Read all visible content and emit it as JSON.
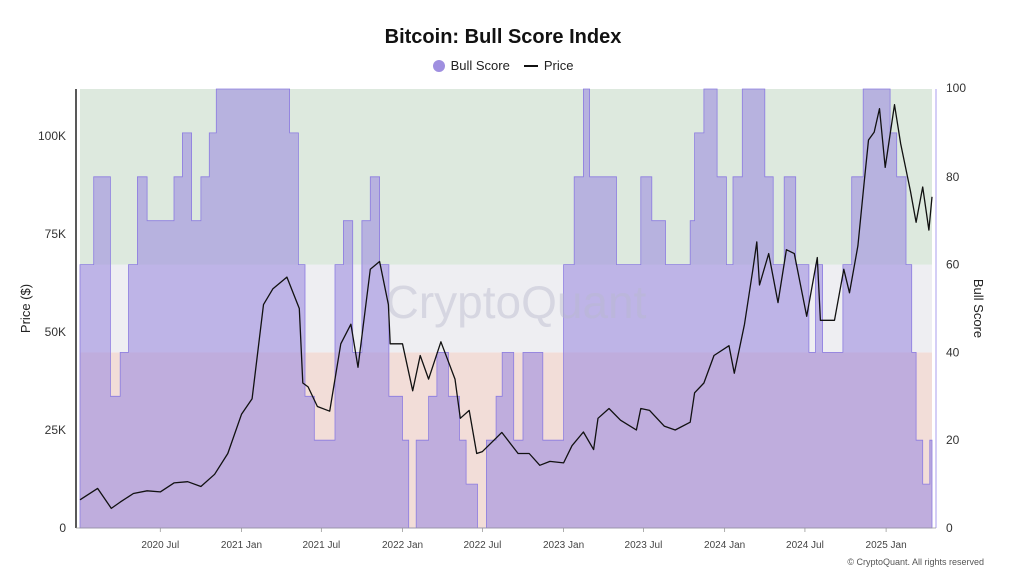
{
  "copyright": "© CryptoQuant. All rights reserved",
  "chart_data": {
    "type": "area",
    "title": "Bitcoin: Bull Score Index",
    "watermark": "CryptoQuant",
    "y_left_label": "Price ($)",
    "y_right_label": "Bull Score",
    "y_left_ticks": [
      "0",
      "25K",
      "50K",
      "75K",
      "100K"
    ],
    "y_left_tick_values": [
      0,
      25000,
      50000,
      75000,
      100000
    ],
    "y_left_lim": [
      0,
      112000
    ],
    "y_right_ticks": [
      "0",
      "20",
      "40",
      "60",
      "80",
      "100"
    ],
    "y_right_tick_values": [
      0,
      20,
      40,
      60,
      80,
      100
    ],
    "y_right_lim": [
      0,
      100
    ],
    "x_ticks": [
      "2020 Jul",
      "2021 Jan",
      "2021 Jul",
      "2022 Jan",
      "2022 Jul",
      "2023 Jan",
      "2023 Jul",
      "2024 Jan",
      "2024 Jul",
      "2025 Jan"
    ],
    "x_tick_dates": [
      "2020-07-01",
      "2021-01-01",
      "2021-07-01",
      "2022-01-01",
      "2022-07-01",
      "2023-01-01",
      "2023-07-01",
      "2024-01-01",
      "2024-07-01",
      "2025-01-01"
    ],
    "x_range": [
      "2020-01-01",
      "2025-04-15"
    ],
    "legend_position": "top-center",
    "grid": false,
    "zones": [
      {
        "from": 0,
        "to": 40,
        "color": "#f2ddd8"
      },
      {
        "from": 40,
        "to": 60,
        "color": "#eeeef2"
      },
      {
        "from": 60,
        "to": 100,
        "color": "#dde9de"
      }
    ],
    "series": [
      {
        "name": "Bull Score",
        "type": "area",
        "axis": "right",
        "color": "#9f8fe0",
        "points": [
          [
            "2020-01-01",
            60
          ],
          [
            "2020-02-01",
            80
          ],
          [
            "2020-02-20",
            80
          ],
          [
            "2020-03-10",
            30
          ],
          [
            "2020-04-01",
            40
          ],
          [
            "2020-04-20",
            60
          ],
          [
            "2020-05-10",
            80
          ],
          [
            "2020-06-01",
            70
          ],
          [
            "2020-07-01",
            70
          ],
          [
            "2020-08-01",
            80
          ],
          [
            "2020-08-20",
            90
          ],
          [
            "2020-09-10",
            70
          ],
          [
            "2020-10-01",
            80
          ],
          [
            "2020-10-20",
            90
          ],
          [
            "2020-11-05",
            100
          ],
          [
            "2020-12-01",
            100
          ],
          [
            "2021-01-01",
            100
          ],
          [
            "2021-02-01",
            100
          ],
          [
            "2021-03-01",
            100
          ],
          [
            "2021-04-01",
            100
          ],
          [
            "2021-04-20",
            90
          ],
          [
            "2021-05-10",
            60
          ],
          [
            "2021-05-25",
            30
          ],
          [
            "2021-06-15",
            20
          ],
          [
            "2021-07-10",
            20
          ],
          [
            "2021-08-01",
            60
          ],
          [
            "2021-08-20",
            70
          ],
          [
            "2021-09-10",
            40
          ],
          [
            "2021-10-01",
            70
          ],
          [
            "2021-10-20",
            80
          ],
          [
            "2021-11-10",
            60
          ],
          [
            "2021-12-01",
            30
          ],
          [
            "2022-01-01",
            20
          ],
          [
            "2022-01-15",
            0
          ],
          [
            "2022-02-01",
            20
          ],
          [
            "2022-03-01",
            30
          ],
          [
            "2022-03-20",
            40
          ],
          [
            "2022-04-15",
            30
          ],
          [
            "2022-05-10",
            20
          ],
          [
            "2022-05-25",
            10
          ],
          [
            "2022-06-20",
            0
          ],
          [
            "2022-07-10",
            20
          ],
          [
            "2022-08-01",
            30
          ],
          [
            "2022-08-15",
            40
          ],
          [
            "2022-09-10",
            20
          ],
          [
            "2022-10-01",
            40
          ],
          [
            "2022-11-15",
            20
          ],
          [
            "2022-12-10",
            20
          ],
          [
            "2023-01-01",
            60
          ],
          [
            "2023-01-25",
            80
          ],
          [
            "2023-02-15",
            100
          ],
          [
            "2023-03-01",
            80
          ],
          [
            "2023-04-01",
            80
          ],
          [
            "2023-05-01",
            60
          ],
          [
            "2023-06-01",
            60
          ],
          [
            "2023-06-25",
            80
          ],
          [
            "2023-07-20",
            70
          ],
          [
            "2023-08-20",
            60
          ],
          [
            "2023-09-15",
            60
          ],
          [
            "2023-10-15",
            70
          ],
          [
            "2023-10-25",
            90
          ],
          [
            "2023-11-15",
            100
          ],
          [
            "2023-12-15",
            80
          ],
          [
            "2024-01-05",
            60
          ],
          [
            "2024-01-20",
            80
          ],
          [
            "2024-02-10",
            100
          ],
          [
            "2024-03-10",
            100
          ],
          [
            "2024-04-01",
            80
          ],
          [
            "2024-04-20",
            60
          ],
          [
            "2024-05-15",
            80
          ],
          [
            "2024-06-10",
            60
          ],
          [
            "2024-07-10",
            40
          ],
          [
            "2024-07-25",
            60
          ],
          [
            "2024-08-10",
            40
          ],
          [
            "2024-09-01",
            40
          ],
          [
            "2024-09-25",
            60
          ],
          [
            "2024-10-15",
            80
          ],
          [
            "2024-11-10",
            100
          ],
          [
            "2024-12-10",
            100
          ],
          [
            "2025-01-10",
            90
          ],
          [
            "2025-01-25",
            80
          ],
          [
            "2025-02-15",
            60
          ],
          [
            "2025-02-28",
            40
          ],
          [
            "2025-03-10",
            20
          ],
          [
            "2025-03-25",
            10
          ],
          [
            "2025-04-10",
            20
          ],
          [
            "2025-04-15",
            20
          ]
        ]
      },
      {
        "name": "Price",
        "type": "line",
        "axis": "left",
        "color": "#111111",
        "points": [
          [
            "2020-01-01",
            7200
          ],
          [
            "2020-02-10",
            10100
          ],
          [
            "2020-03-12",
            5000
          ],
          [
            "2020-04-01",
            6600
          ],
          [
            "2020-05-01",
            8800
          ],
          [
            "2020-06-01",
            9500
          ],
          [
            "2020-07-01",
            9200
          ],
          [
            "2020-08-01",
            11500
          ],
          [
            "2020-09-01",
            11800
          ],
          [
            "2020-10-01",
            10600
          ],
          [
            "2020-11-01",
            13700
          ],
          [
            "2020-12-01",
            19000
          ],
          [
            "2021-01-01",
            29000
          ],
          [
            "2021-01-25",
            33000
          ],
          [
            "2021-02-20",
            57000
          ],
          [
            "2021-03-13",
            61000
          ],
          [
            "2021-04-14",
            64000
          ],
          [
            "2021-05-12",
            56000
          ],
          [
            "2021-05-20",
            37000
          ],
          [
            "2021-06-01",
            36000
          ],
          [
            "2021-06-22",
            31000
          ],
          [
            "2021-07-20",
            29800
          ],
          [
            "2021-08-14",
            47000
          ],
          [
            "2021-09-06",
            52000
          ],
          [
            "2021-09-22",
            41000
          ],
          [
            "2021-10-20",
            66000
          ],
          [
            "2021-11-10",
            68000
          ],
          [
            "2021-11-30",
            57000
          ],
          [
            "2021-12-04",
            47000
          ],
          [
            "2022-01-01",
            47000
          ],
          [
            "2022-01-24",
            35000
          ],
          [
            "2022-02-10",
            44000
          ],
          [
            "2022-03-01",
            38000
          ],
          [
            "2022-03-29",
            47500
          ],
          [
            "2022-04-30",
            38000
          ],
          [
            "2022-05-12",
            28000
          ],
          [
            "2022-06-01",
            30000
          ],
          [
            "2022-06-18",
            19000
          ],
          [
            "2022-07-01",
            19500
          ],
          [
            "2022-08-14",
            24400
          ],
          [
            "2022-09-20",
            19000
          ],
          [
            "2022-10-15",
            19000
          ],
          [
            "2022-11-08",
            16000
          ],
          [
            "2022-12-01",
            17000
          ],
          [
            "2023-01-01",
            16600
          ],
          [
            "2023-01-20",
            21000
          ],
          [
            "2023-02-15",
            24500
          ],
          [
            "2023-03-10",
            20000
          ],
          [
            "2023-03-20",
            28000
          ],
          [
            "2023-04-14",
            30500
          ],
          [
            "2023-05-10",
            27500
          ],
          [
            "2023-06-15",
            25000
          ],
          [
            "2023-06-25",
            30500
          ],
          [
            "2023-07-15",
            30000
          ],
          [
            "2023-08-17",
            26000
          ],
          [
            "2023-09-11",
            25000
          ],
          [
            "2023-10-15",
            27000
          ],
          [
            "2023-10-25",
            34500
          ],
          [
            "2023-11-15",
            37000
          ],
          [
            "2023-12-08",
            44000
          ],
          [
            "2024-01-11",
            46500
          ],
          [
            "2024-01-23",
            39500
          ],
          [
            "2024-02-15",
            52000
          ],
          [
            "2024-03-05",
            66000
          ],
          [
            "2024-03-14",
            73000
          ],
          [
            "2024-03-20",
            62000
          ],
          [
            "2024-04-10",
            70000
          ],
          [
            "2024-05-01",
            57500
          ],
          [
            "2024-05-20",
            71000
          ],
          [
            "2024-06-07",
            70000
          ],
          [
            "2024-07-05",
            54000
          ],
          [
            "2024-07-29",
            69000
          ],
          [
            "2024-08-05",
            53000
          ],
          [
            "2024-09-06",
            53000
          ],
          [
            "2024-09-27",
            66000
          ],
          [
            "2024-10-10",
            60000
          ],
          [
            "2024-10-29",
            72000
          ],
          [
            "2024-11-12",
            88000
          ],
          [
            "2024-11-22",
            99000
          ],
          [
            "2024-12-05",
            101000
          ],
          [
            "2024-12-17",
            107000
          ],
          [
            "2024-12-30",
            92000
          ],
          [
            "2025-01-20",
            108000
          ],
          [
            "2025-02-03",
            98000
          ],
          [
            "2025-02-25",
            86000
          ],
          [
            "2025-03-10",
            78000
          ],
          [
            "2025-03-25",
            87000
          ],
          [
            "2025-04-08",
            76000
          ],
          [
            "2025-04-15",
            84500
          ]
        ]
      }
    ]
  }
}
